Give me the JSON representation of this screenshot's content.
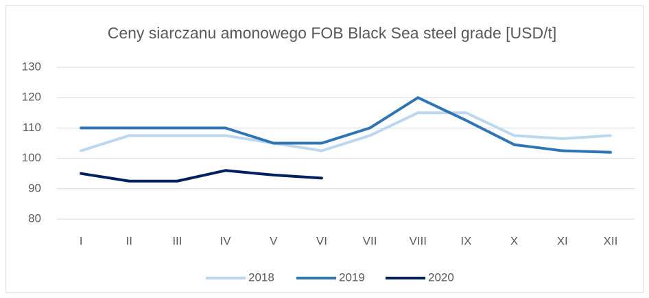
{
  "chart_data": {
    "type": "line",
    "title": "Ceny siarczanu amonowego FOB Black Sea steel grade [USD/t]",
    "categories": [
      "I",
      "II",
      "III",
      "IV",
      "V",
      "VI",
      "VII",
      "VIII",
      "IX",
      "X",
      "XI",
      "XII"
    ],
    "series": [
      {
        "name": "2018",
        "color": "#bdd7ee",
        "values": [
          102.5,
          107.5,
          107.5,
          107.5,
          105,
          102.5,
          107.5,
          115,
          115,
          107.5,
          106.5,
          107.5
        ]
      },
      {
        "name": "2019",
        "color": "#2e75b6",
        "values": [
          110,
          110,
          110,
          110,
          105,
          105,
          110,
          120,
          112.5,
          104.5,
          102.5,
          102
        ]
      },
      {
        "name": "2020",
        "color": "#002060",
        "values": [
          95,
          92.5,
          92.5,
          96,
          94.5,
          93.5,
          null,
          null,
          null,
          null,
          null,
          null
        ]
      }
    ],
    "ylim": [
      80,
      130
    ],
    "yticks": [
      80,
      90,
      100,
      110,
      120,
      130
    ],
    "grid": true,
    "legend": "bottom"
  }
}
